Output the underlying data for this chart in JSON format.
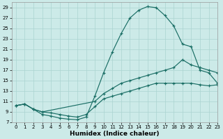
{
  "xlabel": "Humidex (Indice chaleur)",
  "xlim": [
    -0.5,
    23
  ],
  "ylim": [
    7,
    30
  ],
  "xticks": [
    0,
    1,
    2,
    3,
    4,
    5,
    6,
    7,
    8,
    9,
    10,
    11,
    12,
    13,
    14,
    15,
    16,
    17,
    18,
    19,
    20,
    21,
    22,
    23
  ],
  "yticks": [
    7,
    9,
    11,
    13,
    15,
    17,
    19,
    21,
    23,
    25,
    27,
    29
  ],
  "bg_color": "#cceae8",
  "line_color": "#1a6e65",
  "grid_color": "#aad4d0",
  "curve1_x": [
    0,
    1,
    2,
    3,
    4,
    5,
    6,
    7,
    8,
    9,
    10,
    11,
    12,
    13,
    14,
    15,
    16,
    17,
    18,
    19,
    20,
    21,
    22,
    23
  ],
  "curve1_y": [
    10.2,
    10.5,
    9.5,
    8.5,
    8.2,
    7.8,
    7.6,
    7.5,
    8.0,
    12.0,
    16.5,
    20.5,
    24.0,
    27.0,
    28.5,
    29.2,
    29.0,
    27.5,
    25.5,
    22.0,
    21.5,
    17.0,
    16.5,
    14.5
  ],
  "curve2_x": [
    0,
    1,
    2,
    3,
    9,
    10,
    11,
    12,
    13,
    14,
    15,
    16,
    17,
    18,
    19,
    20,
    21,
    22,
    23
  ],
  "curve2_y": [
    10.2,
    10.5,
    9.5,
    9.0,
    11.0,
    12.5,
    13.5,
    14.5,
    15.0,
    15.5,
    16.0,
    16.5,
    17.0,
    17.5,
    19.0,
    18.0,
    17.5,
    17.0,
    16.5
  ],
  "curve3_x": [
    0,
    1,
    2,
    3,
    4,
    5,
    6,
    7,
    8,
    9,
    10,
    11,
    12,
    13,
    14,
    15,
    16,
    17,
    18,
    19,
    20,
    21,
    22,
    23
  ],
  "curve3_y": [
    10.2,
    10.5,
    9.5,
    9.0,
    8.8,
    8.5,
    8.2,
    8.0,
    8.5,
    10.0,
    11.5,
    12.0,
    12.5,
    13.0,
    13.5,
    14.0,
    14.5,
    14.5,
    14.5,
    14.5,
    14.5,
    14.2,
    14.0,
    14.2
  ]
}
